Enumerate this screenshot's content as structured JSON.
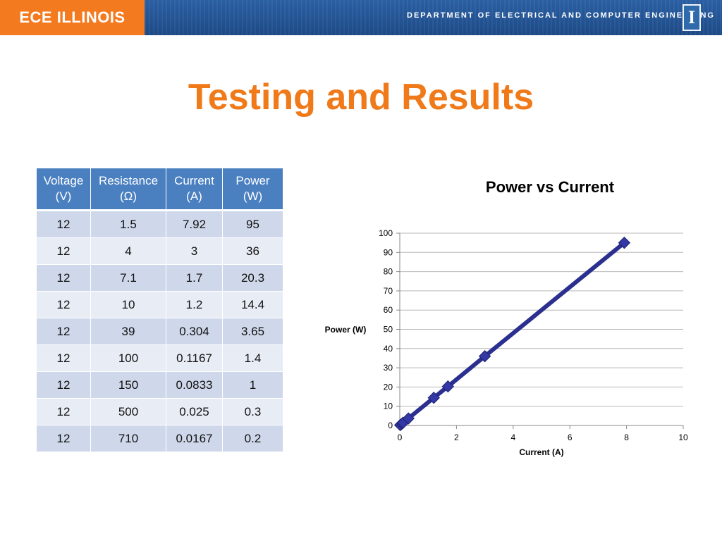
{
  "header": {
    "brand": "ECE ILLINOIS",
    "department": "DEPARTMENT OF ELECTRICAL AND COMPUTER ENGINEERING",
    "logo": "I"
  },
  "slide": {
    "title": "Testing and Results"
  },
  "table": {
    "headers": [
      [
        "Voltage",
        "(V)"
      ],
      [
        "Resistance",
        "(Ω)"
      ],
      [
        "Current",
        "(A)"
      ],
      [
        "Power",
        "(W)"
      ]
    ],
    "rows": [
      [
        "12",
        "1.5",
        "7.92",
        "95"
      ],
      [
        "12",
        "4",
        "3",
        "36"
      ],
      [
        "12",
        "7.1",
        "1.7",
        "20.3"
      ],
      [
        "12",
        "10",
        "1.2",
        "14.4"
      ],
      [
        "12",
        "39",
        "0.304",
        "3.65"
      ],
      [
        "12",
        "100",
        "0.1167",
        "1.4"
      ],
      [
        "12",
        "150",
        "0.0833",
        "1"
      ],
      [
        "12",
        "500",
        "0.025",
        "0.3"
      ],
      [
        "12",
        "710",
        "0.0167",
        "0.2"
      ]
    ]
  },
  "chart_data": {
    "type": "line",
    "title": "Power vs Current",
    "xlabel": "Current (A)",
    "ylabel": "Power (W)",
    "xlim": [
      0,
      10
    ],
    "ylim": [
      0,
      100
    ],
    "xticks": [
      0,
      2,
      4,
      6,
      8,
      10
    ],
    "yticks": [
      0,
      10,
      20,
      30,
      40,
      50,
      60,
      70,
      80,
      90,
      100
    ],
    "grid": "horizontal",
    "legend": "none",
    "series": [
      {
        "x": [
          0.0167,
          0.025,
          0.0833,
          0.1167,
          0.304,
          1.2,
          1.7,
          3,
          7.92
        ],
        "y": [
          0.2,
          0.3,
          1,
          1.4,
          3.65,
          14.4,
          20.3,
          36,
          95
        ],
        "color": "#2b2f8f",
        "marker": "diamond"
      }
    ]
  },
  "colors": {
    "accent": "#f07a1a",
    "header": "#1f4e8c",
    "table_header": "#4a7fc0"
  }
}
